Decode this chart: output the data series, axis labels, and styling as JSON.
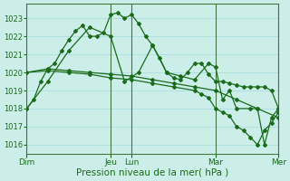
{
  "xlabel": "Pression niveau de la mer( hPa )",
  "background_color": "#cceee8",
  "grid_color": "#aadddd",
  "line_color": "#1a6b1a",
  "ylim": [
    1015.5,
    1023.8
  ],
  "yticks": [
    1016,
    1017,
    1018,
    1019,
    1020,
    1021,
    1022,
    1023
  ],
  "day_tick_positions": [
    0,
    12,
    15,
    27,
    36
  ],
  "day_tick_labels": [
    "Dim",
    "Jeu",
    "Lun",
    "Mar",
    "Mer"
  ],
  "series1_x": [
    0,
    1,
    2,
    3,
    4,
    5,
    6,
    7,
    8,
    9,
    10,
    11,
    12,
    13,
    14,
    15,
    16,
    17,
    18,
    19,
    20,
    21,
    22,
    23,
    24,
    25,
    26,
    27,
    28,
    29,
    30,
    31,
    32,
    33,
    34,
    35,
    36
  ],
  "series1_y": [
    1018.0,
    1018.5,
    1019.5,
    1020.2,
    1020.5,
    1021.2,
    1021.8,
    1022.3,
    1022.6,
    1022.0,
    1022.0,
    1022.2,
    1023.2,
    1023.3,
    1023.0,
    1023.2,
    1022.7,
    1022.0,
    1021.5,
    1020.8,
    1020.0,
    1019.7,
    1019.6,
    1020.0,
    1020.5,
    1020.5,
    1019.9,
    1019.5,
    1019.5,
    1019.4,
    1019.3,
    1019.2,
    1019.2,
    1019.2,
    1019.2,
    1019.0,
    1018.0
  ],
  "series2_x": [
    0,
    3,
    6,
    9,
    12,
    15,
    18,
    21,
    24,
    27,
    30,
    33,
    36
  ],
  "series2_y": [
    1020.0,
    1020.2,
    1020.1,
    1020.0,
    1019.9,
    1019.8,
    1019.6,
    1019.4,
    1019.2,
    1019.0,
    1018.5,
    1018.0,
    1017.5
  ],
  "series3_x": [
    0,
    3,
    6,
    9,
    12,
    15,
    18,
    21,
    24,
    25,
    26,
    27,
    28,
    29,
    30,
    31,
    32,
    33,
    34,
    35,
    36
  ],
  "series3_y": [
    1020.0,
    1020.1,
    1020.0,
    1019.9,
    1019.7,
    1019.6,
    1019.4,
    1019.2,
    1019.0,
    1018.8,
    1018.6,
    1018.0,
    1017.8,
    1017.6,
    1017.0,
    1016.8,
    1016.4,
    1016.0,
    1016.8,
    1017.2,
    1017.8
  ],
  "series4_x": [
    0,
    3,
    6,
    9,
    12,
    14,
    16,
    18,
    20,
    22,
    24,
    26,
    27,
    28,
    29,
    30,
    32,
    33,
    34,
    35,
    36
  ],
  "series4_y": [
    1018.0,
    1019.5,
    1021.2,
    1022.5,
    1022.0,
    1019.5,
    1020.0,
    1021.5,
    1020.0,
    1019.8,
    1019.6,
    1020.5,
    1020.3,
    1018.5,
    1019.0,
    1018.0,
    1018.0,
    1018.0,
    1016.0,
    1017.5,
    1018.0
  ]
}
